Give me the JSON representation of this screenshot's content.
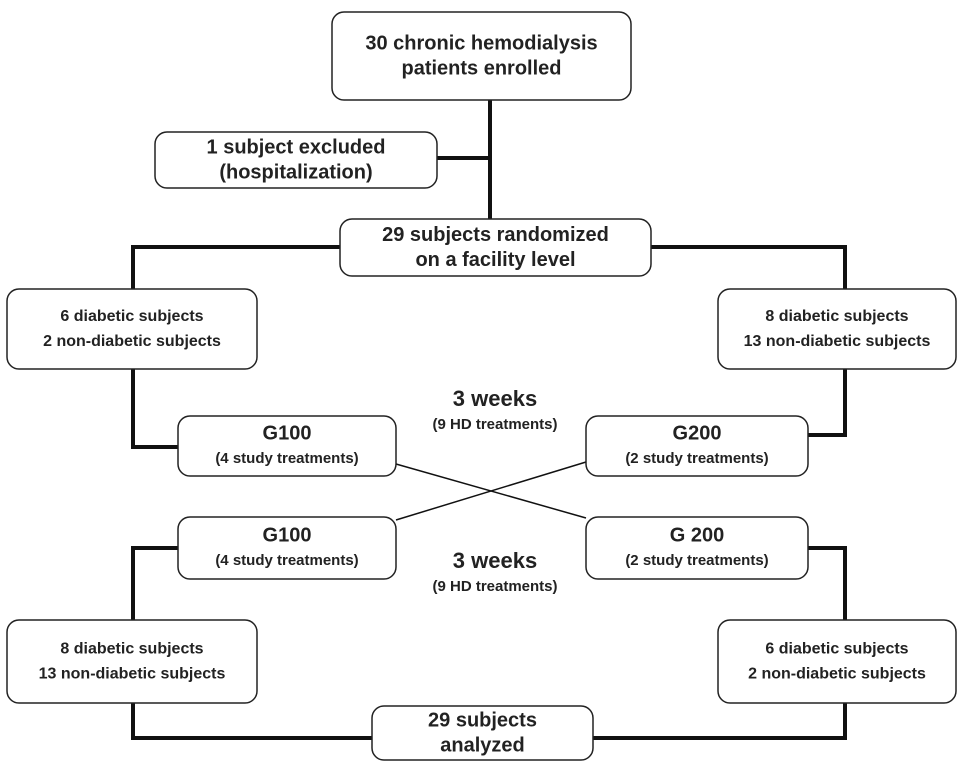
{
  "nodes": [
    {
      "lines": [
        "30 chronic hemodialysis",
        "patients enrolled"
      ]
    },
    {
      "lines": [
        "1 subject excluded",
        "(hospitalization)"
      ]
    },
    {
      "lines": [
        "29 subjects randomized",
        "on a facility level"
      ]
    },
    {
      "lines": [
        "6  diabetic subjects",
        "2 non-diabetic subjects"
      ]
    },
    {
      "lines": [
        "8 diabetic subjects",
        "13 non-diabetic subjects"
      ]
    },
    {
      "lines": [
        "G100",
        "(4 study treatments)"
      ]
    },
    {
      "lines": [
        "G200",
        "(2 study treatments)"
      ]
    },
    {
      "lines": [
        "G100",
        "(4 study treatments)"
      ]
    },
    {
      "lines": [
        "G 200",
        "(2 study treatments)"
      ]
    },
    {
      "lines": [
        "8 diabetic subjects",
        "13 non-diabetic subjects"
      ]
    },
    {
      "lines": [
        "6 diabetic subjects",
        "2 non-diabetic subjects"
      ]
    },
    {
      "lines": [
        "29 subjects",
        "analyzed"
      ]
    }
  ],
  "annotations": [
    {
      "lines": [
        "3 weeks",
        "(9 HD treatments)"
      ]
    },
    {
      "lines": [
        "3 weeks",
        "(9 HD treatments)"
      ]
    }
  ]
}
